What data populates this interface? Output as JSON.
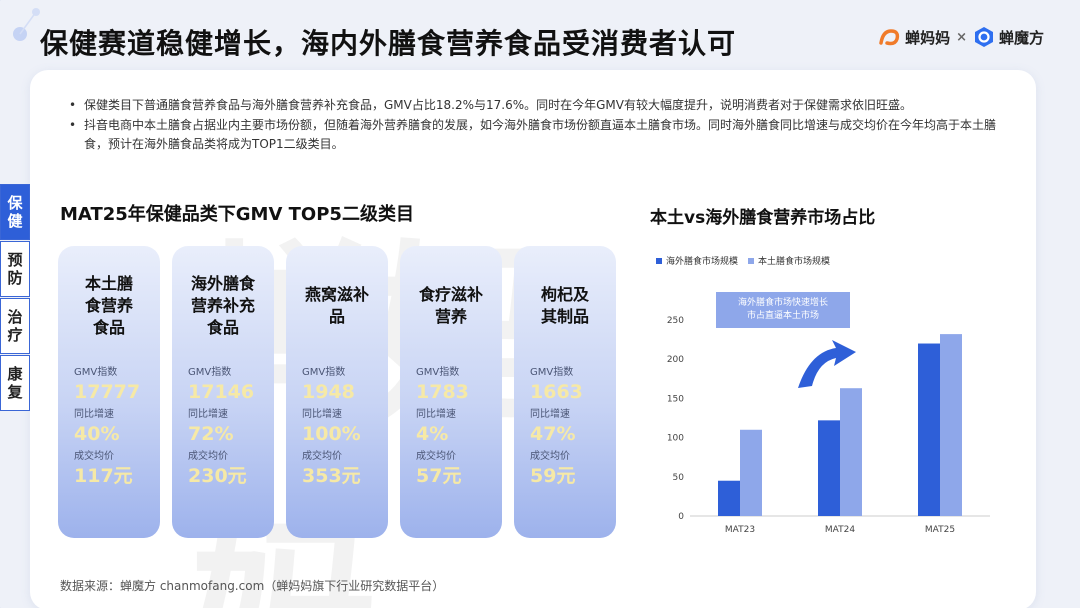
{
  "page": {
    "headline": "保健赛道稳健增长，海内外膳食营养食品受消费者认可",
    "logos": {
      "brand1": "蝉妈妈",
      "separator": "×",
      "brand2": "蝉魔方"
    }
  },
  "bullets": [
    "保健类目下普通膳食营养食品与海外膳食营养补充食品，GMV占比18.2%与17.6%。同时在今年GMV有较大幅度提升，说明消费者对于保健需求依旧旺盛。",
    "抖音电商中本土膳食占据业内主要市场份额，但随着海外营养膳食的发展，如今海外膳食市场份额直逼本土膳食市场。同时海外膳食同比增速与成交均价在今年均高于本土膳食，预计在海外膳食品类将成为TOP1二级类目。"
  ],
  "side_tabs": [
    {
      "chars": [
        "保",
        "健"
      ],
      "active": true
    },
    {
      "chars": [
        "预",
        "防"
      ],
      "active": false
    },
    {
      "chars": [
        "治",
        "疗"
      ],
      "active": false
    },
    {
      "chars": [
        "康",
        "复"
      ],
      "active": false
    }
  ],
  "left_section": {
    "title": "MAT25年保健品类下GMV TOP5二级类目",
    "metric_labels": {
      "gmv": "GMV指数",
      "yoy": "同比增速",
      "price": "成交均价"
    },
    "categories": [
      {
        "name_lines": [
          "本土膳",
          "食营养",
          "食品"
        ],
        "gmv": "17777",
        "yoy": "40%",
        "price": "117元"
      },
      {
        "name_lines": [
          "海外膳食",
          "营养补充",
          "食品"
        ],
        "gmv": "17146",
        "yoy": "72%",
        "price": "230元"
      },
      {
        "name_lines": [
          "燕窝滋补",
          "品"
        ],
        "gmv": "1948",
        "yoy": "100%",
        "price": "353元"
      },
      {
        "name_lines": [
          "食疗滋补",
          "营养"
        ],
        "gmv": "1783",
        "yoy": "4%",
        "price": "57元"
      },
      {
        "name_lines": [
          "枸杞及",
          "其制品"
        ],
        "gmv": "1663",
        "yoy": "47%",
        "price": "59元"
      }
    ]
  },
  "right_section": {
    "title": "本土vs海外膳食营养市场占比",
    "annotation_lines": [
      "海外膳食市场快速增长",
      "市占直逼本土市场"
    ]
  },
  "chart_data": {
    "type": "bar",
    "title": "本土vs海外膳食营养市场占比",
    "categories": [
      "MAT23",
      "MAT24",
      "MAT25"
    ],
    "series": [
      {
        "name": "海外膳食市场规模",
        "values": [
          45,
          122,
          220
        ],
        "color": "#2e5fd8"
      },
      {
        "name": "本土膳食市场规模",
        "values": [
          110,
          163,
          232
        ],
        "color": "#8ea7ea"
      }
    ],
    "yticks": [
      0,
      50,
      100,
      150,
      200,
      250
    ],
    "ylim": [
      0,
      250
    ],
    "xlabel": "",
    "ylabel": "",
    "grid": false,
    "legend_position": "top-left"
  },
  "source": "数据来源：蝉魔方 chanmofang.com（蝉妈妈旗下行业研究数据平台）",
  "colors": {
    "accent": "#2e5fd8",
    "accent_light": "#8ea7ea",
    "value_yellow": "#f6e9a6"
  },
  "watermark": "蝉妈妈"
}
